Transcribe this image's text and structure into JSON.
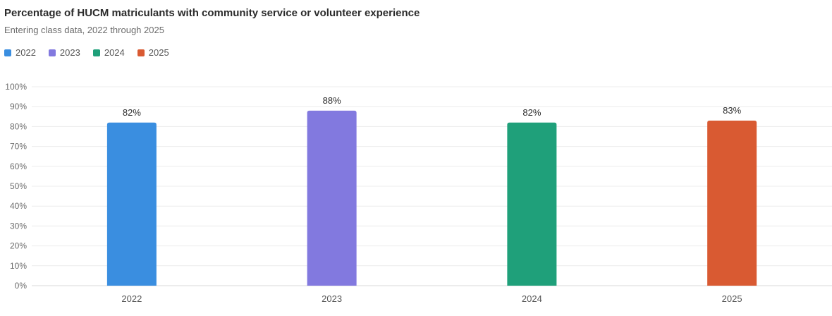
{
  "chart_data": {
    "type": "bar",
    "title": "Percentage of HUCM matriculants with community service or volunteer experience",
    "subtitle": "Entering class data, 2022 through 2025",
    "categories": [
      "2022",
      "2023",
      "2024",
      "2025"
    ],
    "values": [
      82,
      88,
      82,
      83
    ],
    "value_labels": [
      "82%",
      "88%",
      "82%",
      "83%"
    ],
    "colors": [
      "#3a8ee0",
      "#8279df",
      "#1fa07a",
      "#d95a32"
    ],
    "legend": [
      {
        "label": "2022",
        "color": "#3a8ee0"
      },
      {
        "label": "2023",
        "color": "#8279df"
      },
      {
        "label": "2024",
        "color": "#1fa07a"
      },
      {
        "label": "2025",
        "color": "#d95a32"
      }
    ],
    "legend_position": "top-left",
    "xlabel": "",
    "ylabel": "",
    "ylim": [
      0,
      100
    ],
    "yticks": [
      0,
      10,
      20,
      30,
      40,
      50,
      60,
      70,
      80,
      90,
      100
    ],
    "ytick_labels": [
      "0%",
      "10%",
      "20%",
      "30%",
      "40%",
      "50%",
      "60%",
      "70%",
      "80%",
      "90%",
      "100%"
    ],
    "grid": true
  }
}
